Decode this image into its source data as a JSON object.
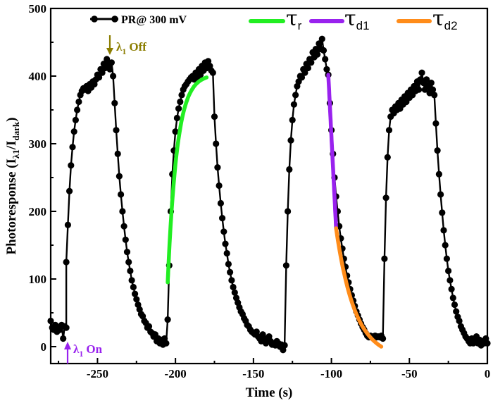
{
  "chart_data": {
    "type": "scatter-line",
    "title": "",
    "xlabel": "Time (s)",
    "ylabel_main": "Photoresponse (I",
    "ylabel_sub1": "λ1",
    "ylabel_mid": "/I",
    "ylabel_sub2": "dark",
    "ylabel_end": ")",
    "xlim": [
      -280,
      0
    ],
    "ylim": [
      -25,
      500
    ],
    "x_ticks": [
      -250,
      -200,
      -150,
      -100,
      -50,
      0
    ],
    "x_tick_labels": [
      "-250",
      "-200",
      "-150",
      "-100",
      "-50",
      "0"
    ],
    "y_ticks": [
      0,
      100,
      200,
      300,
      400,
      500
    ],
    "y_tick_labels": [
      "0",
      "100",
      "200",
      "300",
      "400",
      "500"
    ],
    "legend": {
      "series_label": "PR@ 300 mV",
      "tau_symbol": "τ",
      "fits": [
        {
          "sub": "r",
          "color": "#22ee22"
        },
        {
          "sub": "d1",
          "color": "#9922ee"
        },
        {
          "sub": "d2",
          "color": "#ff8c1a"
        }
      ]
    },
    "annotations": {
      "off_label": "λ",
      "off_sub": "1",
      "off_word": "Off",
      "off_color": "#8b7d00",
      "on_label": "λ",
      "on_sub": "1",
      "on_word": "On",
      "on_color": "#9922ee"
    },
    "series": [
      {
        "name": "PR@ 300 mV",
        "color": "#000000",
        "points": [
          [
            -280,
            38
          ],
          [
            -279,
            28
          ],
          [
            -278,
            25
          ],
          [
            -277,
            32
          ],
          [
            -276,
            22
          ],
          [
            -275,
            28
          ],
          [
            -274,
            25
          ],
          [
            -273,
            32
          ],
          [
            -272,
            12
          ],
          [
            -271,
            30
          ],
          [
            -270,
            28
          ],
          [
            -270,
            125
          ],
          [
            -269,
            180
          ],
          [
            -268,
            230
          ],
          [
            -267,
            268
          ],
          [
            -266,
            295
          ],
          [
            -265,
            318
          ],
          [
            -264,
            335
          ],
          [
            -263,
            350
          ],
          [
            -262,
            362
          ],
          [
            -261,
            372
          ],
          [
            -260,
            378
          ],
          [
            -259,
            382
          ],
          [
            -258,
            380
          ],
          [
            -257,
            385
          ],
          [
            -256,
            378
          ],
          [
            -255,
            388
          ],
          [
            -254,
            383
          ],
          [
            -253,
            392
          ],
          [
            -252,
            388
          ],
          [
            -251,
            395
          ],
          [
            -250,
            402
          ],
          [
            -249,
            398
          ],
          [
            -248,
            410
          ],
          [
            -247,
            405
          ],
          [
            -246,
            418
          ],
          [
            -245,
            412
          ],
          [
            -244,
            425
          ],
          [
            -243,
            418
          ],
          [
            -242,
            410
          ],
          [
            -241,
            420
          ],
          [
            -240,
            400
          ],
          [
            -239,
            360
          ],
          [
            -238,
            320
          ],
          [
            -237,
            285
          ],
          [
            -236,
            252
          ],
          [
            -235,
            225
          ],
          [
            -234,
            200
          ],
          [
            -233,
            178
          ],
          [
            -232,
            158
          ],
          [
            -231,
            140
          ],
          [
            -230,
            125
          ],
          [
            -229,
            112
          ],
          [
            -228,
            98
          ],
          [
            -227,
            88
          ],
          [
            -226,
            78
          ],
          [
            -225,
            70
          ],
          [
            -224,
            62
          ],
          [
            -223,
            55
          ],
          [
            -222,
            48
          ],
          [
            -221,
            45
          ],
          [
            -220,
            38
          ],
          [
            -219,
            35
          ],
          [
            -218,
            28
          ],
          [
            -217,
            30
          ],
          [
            -216,
            22
          ],
          [
            -215,
            20
          ],
          [
            -214,
            15
          ],
          [
            -213,
            18
          ],
          [
            -212,
            8
          ],
          [
            -211,
            12
          ],
          [
            -210,
            5
          ],
          [
            -209,
            10
          ],
          [
            -208,
            3
          ],
          [
            -207,
            12
          ],
          [
            -206,
            5
          ],
          [
            -205,
            40
          ],
          [
            -204,
            120
          ],
          [
            -203,
            200
          ],
          [
            -202,
            255
          ],
          [
            -201,
            290
          ],
          [
            -200,
            318
          ],
          [
            -199,
            338
          ],
          [
            -198,
            352
          ],
          [
            -197,
            362
          ],
          [
            -196,
            372
          ],
          [
            -195,
            380
          ],
          [
            -194,
            385
          ],
          [
            -193,
            388
          ],
          [
            -192,
            392
          ],
          [
            -191,
            395
          ],
          [
            -190,
            398
          ],
          [
            -189,
            400
          ],
          [
            -188,
            395
          ],
          [
            -187,
            405
          ],
          [
            -186,
            398
          ],
          [
            -185,
            410
          ],
          [
            -184,
            402
          ],
          [
            -183,
            415
          ],
          [
            -182,
            408
          ],
          [
            -181,
            420
          ],
          [
            -180,
            412
          ],
          [
            -179,
            422
          ],
          [
            -178,
            415
          ],
          [
            -177,
            408
          ],
          [
            -176,
            405
          ],
          [
            -175,
            340
          ],
          [
            -174,
            300
          ],
          [
            -173,
            265
          ],
          [
            -172,
            238
          ],
          [
            -171,
            212
          ],
          [
            -170,
            190
          ],
          [
            -169,
            170
          ],
          [
            -168,
            152
          ],
          [
            -167,
            138
          ],
          [
            -166,
            122
          ],
          [
            -165,
            110
          ],
          [
            -164,
            98
          ],
          [
            -163,
            88
          ],
          [
            -162,
            80
          ],
          [
            -161,
            72
          ],
          [
            -160,
            65
          ],
          [
            -159,
            58
          ],
          [
            -158,
            52
          ],
          [
            -157,
            48
          ],
          [
            -156,
            42
          ],
          [
            -155,
            38
          ],
          [
            -154,
            32
          ],
          [
            -153,
            30
          ],
          [
            -152,
            25
          ],
          [
            -151,
            22
          ],
          [
            -150,
            20
          ],
          [
            -149,
            18
          ],
          [
            -148,
            22
          ],
          [
            -147,
            15
          ],
          [
            -146,
            12
          ],
          [
            -145,
            8
          ],
          [
            -144,
            18
          ],
          [
            -143,
            12
          ],
          [
            -142,
            5
          ],
          [
            -141,
            10
          ],
          [
            -140,
            15
          ],
          [
            -139,
            8
          ],
          [
            -138,
            3
          ],
          [
            -137,
            5
          ],
          [
            -136,
            2
          ],
          [
            -135,
            8
          ],
          [
            -134,
            5
          ],
          [
            -133,
            0
          ],
          [
            -132,
            3
          ],
          [
            -131,
            -5
          ],
          [
            -130,
            2
          ],
          [
            -129,
            120
          ],
          [
            -128,
            200
          ],
          [
            -127,
            262
          ],
          [
            -126,
            305
          ],
          [
            -125,
            335
          ],
          [
            -124,
            358
          ],
          [
            -123,
            372
          ],
          [
            -122,
            385
          ],
          [
            -121,
            392
          ],
          [
            -120,
            400
          ],
          [
            -119,
            398
          ],
          [
            -118,
            410
          ],
          [
            -117,
            405
          ],
          [
            -116,
            418
          ],
          [
            -115,
            412
          ],
          [
            -114,
            425
          ],
          [
            -113,
            420
          ],
          [
            -112,
            435
          ],
          [
            -111,
            428
          ],
          [
            -110,
            440
          ],
          [
            -109,
            432
          ],
          [
            -108,
            448
          ],
          [
            -107,
            440
          ],
          [
            -106,
            455
          ],
          [
            -105,
            438
          ],
          [
            -104,
            425
          ],
          [
            -103,
            410
          ],
          [
            -102,
            402
          ],
          [
            -101,
            360
          ],
          [
            -100,
            320
          ],
          [
            -99,
            285
          ],
          [
            -98,
            250
          ],
          [
            -97,
            222
          ],
          [
            -96,
            200
          ],
          [
            -95,
            178
          ],
          [
            -94,
            160
          ],
          [
            -93,
            145
          ],
          [
            -92,
            130
          ],
          [
            -91,
            118
          ],
          [
            -90,
            105
          ],
          [
            -89,
            95
          ],
          [
            -88,
            85
          ],
          [
            -87,
            76
          ],
          [
            -86,
            68
          ],
          [
            -85,
            60
          ],
          [
            -84,
            52
          ],
          [
            -83,
            46
          ],
          [
            -82,
            40
          ],
          [
            -81,
            34
          ],
          [
            -80,
            29
          ],
          [
            -79,
            25
          ],
          [
            -78,
            20
          ],
          [
            -77,
            16
          ],
          [
            -76,
            14
          ],
          [
            -75,
            16
          ],
          [
            -74,
            14
          ],
          [
            -73,
            15
          ],
          [
            -72,
            16
          ],
          [
            -71,
            14
          ],
          [
            -70,
            15
          ],
          [
            -69,
            14
          ],
          [
            -68,
            16
          ],
          [
            -67,
            12
          ],
          [
            -66,
            130
          ],
          [
            -65,
            220
          ],
          [
            -64,
            280
          ],
          [
            -63,
            320
          ],
          [
            -62,
            340
          ],
          [
            -61,
            350
          ],
          [
            -60,
            345
          ],
          [
            -59,
            355
          ],
          [
            -58,
            350
          ],
          [
            -57,
            360
          ],
          [
            -56,
            352
          ],
          [
            -55,
            365
          ],
          [
            -54,
            358
          ],
          [
            -53,
            370
          ],
          [
            -52,
            362
          ],
          [
            -51,
            375
          ],
          [
            -50,
            368
          ],
          [
            -49,
            380
          ],
          [
            -48,
            372
          ],
          [
            -47,
            385
          ],
          [
            -46,
            378
          ],
          [
            -45,
            392
          ],
          [
            -44,
            380
          ],
          [
            -43,
            395
          ],
          [
            -42,
            405
          ],
          [
            -41,
            390
          ],
          [
            -40,
            380
          ],
          [
            -39,
            395
          ],
          [
            -38,
            385
          ],
          [
            -37,
            375
          ],
          [
            -36,
            390
          ],
          [
            -35,
            380
          ],
          [
            -34,
            372
          ],
          [
            -33,
            330
          ],
          [
            -32,
            290
          ],
          [
            -31,
            255
          ],
          [
            -30,
            225
          ],
          [
            -29,
            198
          ],
          [
            -28,
            172
          ],
          [
            -27,
            150
          ],
          [
            -26,
            130
          ],
          [
            -25,
            112
          ],
          [
            -24,
            98
          ],
          [
            -23,
            85
          ],
          [
            -22,
            72
          ],
          [
            -21,
            62
          ],
          [
            -20,
            52
          ],
          [
            -19,
            44
          ],
          [
            -18,
            38
          ],
          [
            -17,
            30
          ],
          [
            -16,
            25
          ],
          [
            -15,
            20
          ],
          [
            -14,
            15
          ],
          [
            -13,
            12
          ],
          [
            -12,
            8
          ],
          [
            -11,
            5
          ],
          [
            -10,
            12
          ],
          [
            -9,
            5
          ],
          [
            -8,
            10
          ],
          [
            -7,
            15
          ],
          [
            -6,
            5
          ],
          [
            -5,
            10
          ],
          [
            -4,
            2
          ],
          [
            -3,
            8
          ],
          [
            -2,
            5
          ],
          [
            -1,
            12
          ],
          [
            0,
            5
          ]
        ]
      }
    ],
    "fits": [
      {
        "name": "tau_r",
        "color": "#22ee22",
        "x_start": -205,
        "x_end": -180,
        "y_start": 95,
        "y_end": 398
      },
      {
        "name": "tau_d1",
        "color": "#9922ee",
        "x_start": -102,
        "x_end": -97,
        "y_start": 402,
        "y_end": 175
      },
      {
        "name": "tau_d2",
        "color": "#ff8c1a",
        "x_start": -97,
        "x_end": -68,
        "y_start": 175,
        "y_end": 0
      }
    ]
  }
}
